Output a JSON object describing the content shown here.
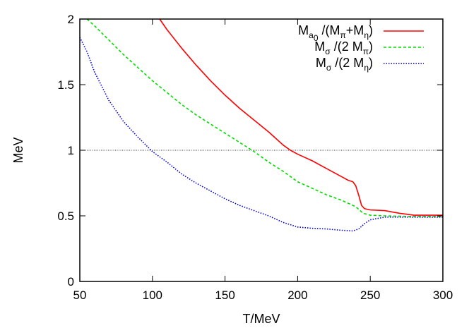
{
  "chart_data": {
    "type": "line",
    "xlabel": "T/MeV",
    "ylabel": "MeV",
    "xlim": [
      50,
      300
    ],
    "ylim": [
      0,
      2
    ],
    "xticks": [
      "50",
      "100",
      "150",
      "200",
      "250",
      "300"
    ],
    "yticks": [
      "0",
      "0.5",
      "1",
      "1.5",
      "2"
    ],
    "reference_line": {
      "y": 1,
      "style": "dotted",
      "color": "#000000"
    },
    "legend_position": "top-right",
    "series": [
      {
        "name": "M_{a_0} /(M_π+M_η)",
        "legend": {
          "base": "M",
          "sub": "a",
          "subsub": "0",
          "rest": " /(M",
          "sub2": "π",
          "mid": "+M",
          "sub3": "η",
          "end": ")"
        },
        "color": "#ff0000",
        "dash": "none",
        "points": [
          [
            105,
            2.0
          ],
          [
            110,
            1.92
          ],
          [
            120,
            1.78
          ],
          [
            130,
            1.65
          ],
          [
            140,
            1.53
          ],
          [
            150,
            1.42
          ],
          [
            160,
            1.32
          ],
          [
            170,
            1.23
          ],
          [
            180,
            1.14
          ],
          [
            185,
            1.09
          ],
          [
            190,
            1.04
          ],
          [
            195,
            1.0
          ],
          [
            200,
            0.97
          ],
          [
            210,
            0.92
          ],
          [
            220,
            0.86
          ],
          [
            230,
            0.8
          ],
          [
            235,
            0.77
          ],
          [
            238,
            0.76
          ],
          [
            240,
            0.73
          ],
          [
            242,
            0.66
          ],
          [
            244,
            0.58
          ],
          [
            246,
            0.555
          ],
          [
            250,
            0.545
          ],
          [
            260,
            0.54
          ],
          [
            270,
            0.52
          ],
          [
            280,
            0.505
          ],
          [
            290,
            0.505
          ],
          [
            300,
            0.505
          ]
        ]
      },
      {
        "name": "M_σ /(2 M_π)",
        "legend": {
          "base": "M",
          "sub": "σ",
          "rest": " /(2 M",
          "sub2": "π",
          "end": ")"
        },
        "color": "#00dd00",
        "dash": "4,3",
        "points": [
          [
            55,
            2.0
          ],
          [
            60,
            1.95
          ],
          [
            70,
            1.84
          ],
          [
            80,
            1.73
          ],
          [
            90,
            1.63
          ],
          [
            100,
            1.53
          ],
          [
            110,
            1.44
          ],
          [
            120,
            1.35
          ],
          [
            130,
            1.27
          ],
          [
            140,
            1.2
          ],
          [
            150,
            1.13
          ],
          [
            160,
            1.06
          ],
          [
            170,
            0.99
          ],
          [
            180,
            0.91
          ],
          [
            190,
            0.84
          ],
          [
            200,
            0.76
          ],
          [
            210,
            0.71
          ],
          [
            220,
            0.66
          ],
          [
            230,
            0.62
          ],
          [
            240,
            0.57
          ],
          [
            245,
            0.52
          ],
          [
            250,
            0.505
          ],
          [
            260,
            0.5
          ],
          [
            280,
            0.495
          ],
          [
            300,
            0.495
          ]
        ]
      },
      {
        "name": "M_σ /(2 M_η)",
        "legend": {
          "base": "M",
          "sub": "σ",
          "rest": " /(2 M",
          "sub2": "η",
          "end": ")"
        },
        "color": "#0000dd",
        "dash": "1.5,2",
        "points": [
          [
            50,
            1.86
          ],
          [
            55,
            1.75
          ],
          [
            60,
            1.6
          ],
          [
            70,
            1.38
          ],
          [
            80,
            1.22
          ],
          [
            90,
            1.1
          ],
          [
            100,
            0.99
          ],
          [
            110,
            0.91
          ],
          [
            120,
            0.82
          ],
          [
            130,
            0.75
          ],
          [
            140,
            0.69
          ],
          [
            150,
            0.63
          ],
          [
            160,
            0.58
          ],
          [
            170,
            0.54
          ],
          [
            180,
            0.5
          ],
          [
            190,
            0.45
          ],
          [
            200,
            0.415
          ],
          [
            210,
            0.405
          ],
          [
            220,
            0.4
          ],
          [
            230,
            0.39
          ],
          [
            238,
            0.385
          ],
          [
            242,
            0.4
          ],
          [
            246,
            0.44
          ],
          [
            250,
            0.47
          ],
          [
            260,
            0.49
          ],
          [
            280,
            0.49
          ],
          [
            300,
            0.49
          ]
        ]
      }
    ]
  }
}
